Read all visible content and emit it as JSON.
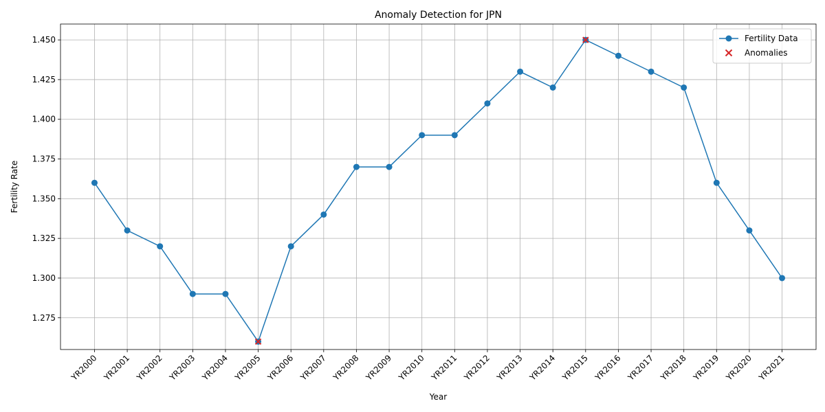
{
  "chart_data": {
    "type": "line",
    "title": "Anomaly Detection for JPN",
    "xlabel": "Year",
    "ylabel": "Fertility Rate",
    "categories": [
      "YR2000",
      "YR2001",
      "YR2002",
      "YR2003",
      "YR2004",
      "YR2005",
      "YR2006",
      "YR2007",
      "YR2008",
      "YR2009",
      "YR2010",
      "YR2011",
      "YR2012",
      "YR2013",
      "YR2014",
      "YR2015",
      "YR2016",
      "YR2017",
      "YR2018",
      "YR2019",
      "YR2020",
      "YR2021"
    ],
    "series": [
      {
        "name": "Fertility Data",
        "color": "#1f77b4",
        "marker": "circle",
        "values": [
          1.36,
          1.33,
          1.32,
          1.29,
          1.29,
          1.26,
          1.32,
          1.34,
          1.37,
          1.37,
          1.39,
          1.39,
          1.41,
          1.43,
          1.42,
          1.45,
          1.44,
          1.43,
          1.42,
          1.36,
          1.33,
          1.3
        ]
      },
      {
        "name": "Anomalies",
        "color": "#d62728",
        "marker": "x",
        "points": [
          {
            "x": "YR2005",
            "y": 1.26
          },
          {
            "x": "YR2015",
            "y": 1.45
          }
        ]
      }
    ],
    "ylim": [
      1.255,
      1.46
    ],
    "yticks": [
      "1.275",
      "1.300",
      "1.325",
      "1.350",
      "1.375",
      "1.400",
      "1.425",
      "1.450"
    ],
    "grid": true,
    "legend": "top-right"
  }
}
